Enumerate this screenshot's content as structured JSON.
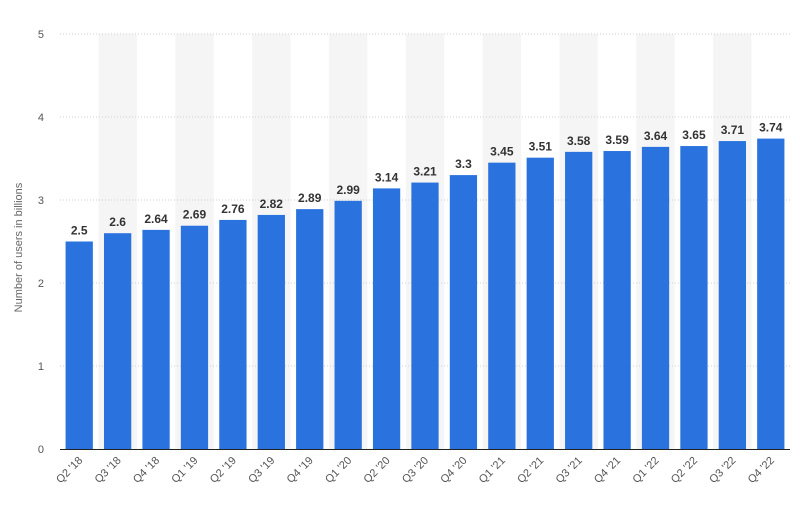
{
  "chart_data": {
    "type": "bar",
    "categories": [
      "Q2 '18",
      "Q3 '18",
      "Q4 '18",
      "Q1 '19",
      "Q2 '19",
      "Q3 '19",
      "Q4 '19",
      "Q1 '20",
      "Q2 '20",
      "Q3 '20",
      "Q4 '20",
      "Q1 '21",
      "Q2 '21",
      "Q3 '21",
      "Q4 '21",
      "Q1 '22",
      "Q2 '22",
      "Q3 '22",
      "Q4 '22"
    ],
    "values": [
      2.5,
      2.6,
      2.64,
      2.69,
      2.76,
      2.82,
      2.89,
      2.99,
      3.14,
      3.21,
      3.3,
      3.45,
      3.51,
      3.58,
      3.59,
      3.64,
      3.65,
      3.71,
      3.74
    ],
    "value_labels": [
      "2.5",
      "2.6",
      "2.64",
      "2.69",
      "2.76",
      "2.82",
      "2.89",
      "2.99",
      "3.14",
      "3.21",
      "3.3",
      "3.45",
      "3.51",
      "3.58",
      "3.59",
      "3.64",
      "3.65",
      "3.71",
      "3.74"
    ],
    "y_ticks": [
      "0",
      "1",
      "2",
      "3",
      "4",
      "5"
    ],
    "ylim": [
      0,
      5
    ],
    "xlabel": "",
    "ylabel": "Number of users in billions",
    "grid": true,
    "colors": {
      "bar": "#2a72de",
      "band": "#f5f5f5",
      "grid": "#cfcfcf",
      "axis": "#222222"
    }
  }
}
